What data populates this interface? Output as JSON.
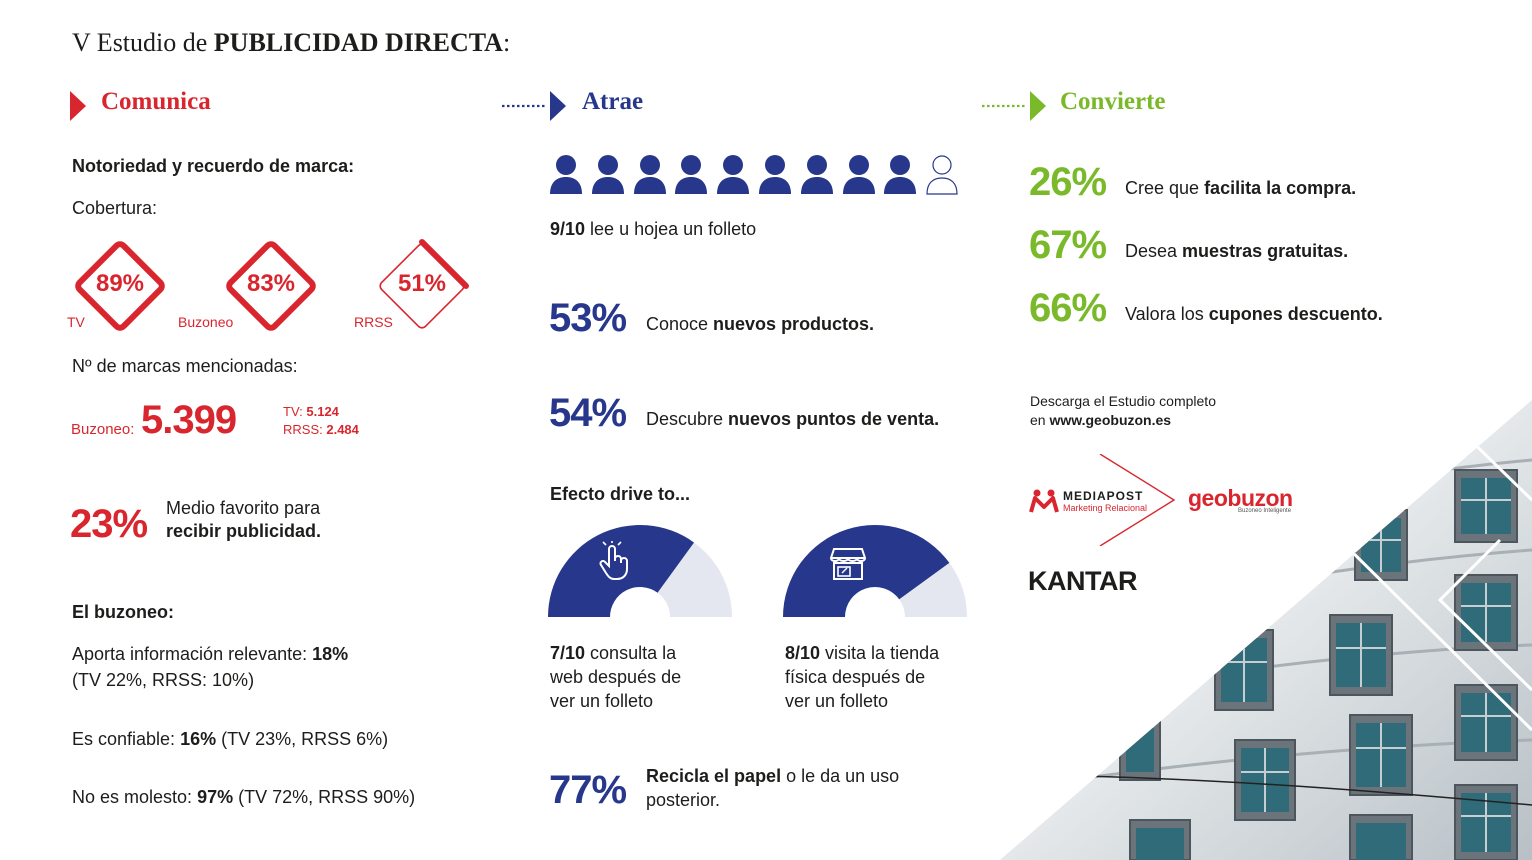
{
  "header": {
    "title_prefix": "V Estudio de ",
    "title_bold": "PUBLICIDAD DIRECTA",
    "title_suffix": ":"
  },
  "colors": {
    "red": "#d9262e",
    "navy": "#27378c",
    "green": "#7ab929"
  },
  "comunica": {
    "title": "Comunica",
    "notoriedad": "Notoriedad y recuerdo de marca:",
    "cobertura": "Cobertura:",
    "diamonds": [
      {
        "value": "89%",
        "label": "TV",
        "level": 0.89
      },
      {
        "value": "83%",
        "label": "Buzoneo",
        "level": 0.83
      },
      {
        "value": "51%",
        "label": "RRSS",
        "level": 0.51
      }
    ],
    "marcas_label": "Nº de marcas mencionadas:",
    "buzoneo_label": "Buzoneo:",
    "buzoneo_value": "5.399",
    "tv_label": "TV:",
    "tv_value": "5.124",
    "rrss_label": "RRSS:",
    "rrss_value": "2.484",
    "favorito_pct": "23%",
    "favorito_line1": "Medio favorito para",
    "favorito_line2": "recibir publicidad.",
    "buzoneo_heading": "El buzoneo:",
    "aporta_text": "Aporta información relevante: ",
    "aporta_value": "18%",
    "aporta_detail": "(TV 22%, RRSS: 10%)",
    "confiable_text": "Es confiable: ",
    "confiable_value": "16%",
    "confiable_detail": " (TV 23%, RRSS 6%)",
    "molesto_text": "No es molesto: ",
    "molesto_value": "97%",
    "molesto_detail": " (TV 72%, RRSS 90%)"
  },
  "atrae": {
    "title": "Atrae",
    "people_filled": 9,
    "people_total": 10,
    "folleto_bold": "9/10",
    "folleto_text": " lee u hojea un folleto",
    "stat1_pct": "53%",
    "stat1_text": "Conoce ",
    "stat1_bold": "nuevos productos.",
    "stat2_pct": "54%",
    "stat2_text": "Descubre ",
    "stat2_bold": "nuevos puntos de venta.",
    "drive_heading": "Efecto drive to...",
    "gauges": [
      {
        "icon": "hand-pointer-icon",
        "level": 0.7,
        "bold": "7/10",
        "text1": " consulta la",
        "text2": "web después de",
        "text3": "ver un folleto"
      },
      {
        "icon": "store-icon",
        "level": 0.8,
        "bold": "8/10",
        "text1": " visita la tienda",
        "text2": "física después de",
        "text3": "ver un folleto"
      }
    ],
    "recicla_pct": "77%",
    "recicla_bold": "Recicla el papel",
    "recicla_text1": " o le da un uso",
    "recicla_text2": "posterior."
  },
  "convierte": {
    "title": "Convierte",
    "stats": [
      {
        "pct": "26%",
        "text": "Cree que ",
        "bold": "facilita la compra."
      },
      {
        "pct": "67%",
        "text": "Desea ",
        "bold": "muestras gratuitas."
      },
      {
        "pct": "66%",
        "text": "Valora los ",
        "bold": "cupones descuento."
      }
    ],
    "descarga1": "Descarga el Estudio completo",
    "descarga2_prefix": "en ",
    "descarga2_url": "www.geobuzon.es",
    "mediapost_name": "MEDIAPOST",
    "mediapost_tag": "Marketing Relacional",
    "geobuzon_name": "geobuzon",
    "geobuzon_tag": "Buzoneo Inteligente",
    "kantar": "KANTAR"
  }
}
